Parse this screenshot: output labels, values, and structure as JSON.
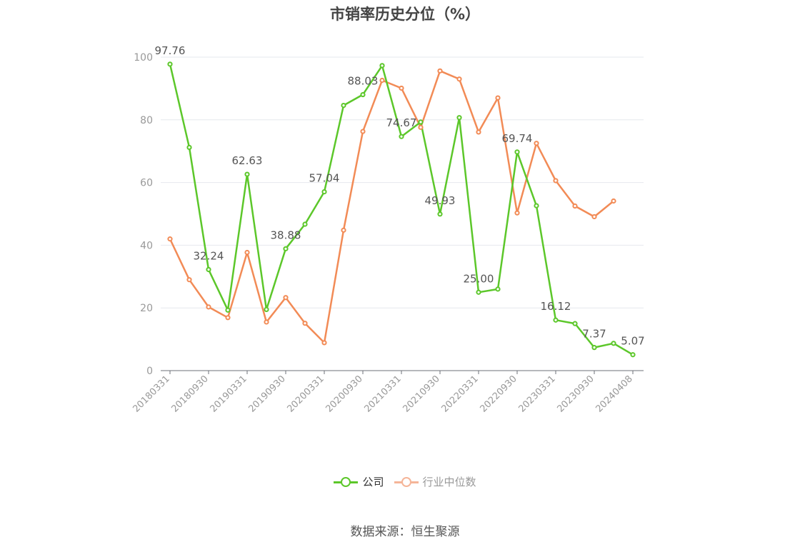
{
  "title": "市销率历史分位（%）",
  "source": "数据来源：恒生聚源",
  "colors": {
    "company": "#5cc72a",
    "industry": "#f28b56",
    "grid": "#e6e8ee",
    "axis": "#999999",
    "label": "#555555"
  },
  "chart_data": {
    "type": "line",
    "title": "市销率历史分位（%）",
    "xlabel": "",
    "ylabel": "",
    "ylim": [
      0,
      100
    ],
    "yticks": [
      0,
      20,
      40,
      60,
      80,
      100
    ],
    "grid": true,
    "legend_position": "bottom",
    "x": [
      "20180331",
      "20180630",
      "20180930",
      "20181231",
      "20190331",
      "20190630",
      "20190930",
      "20191231",
      "20200331",
      "20200630",
      "20200930",
      "20201231",
      "20210331",
      "20210630",
      "20210930",
      "20211231",
      "20220331",
      "20220630",
      "20220930",
      "20221231",
      "20230331",
      "20230630",
      "20230930",
      "20231231",
      "20240408"
    ],
    "xtick_labels": [
      "20180331",
      "20180930",
      "20190331",
      "20190930",
      "20200331",
      "20200930",
      "20210331",
      "20210930",
      "20220331",
      "20220930",
      "20230331",
      "20230930",
      "20240408"
    ],
    "series": [
      {
        "name": "公司",
        "color": "#5cc72a",
        "values": [
          97.76,
          71.2,
          32.24,
          19.3,
          62.63,
          19.5,
          38.88,
          46.7,
          57.04,
          84.6,
          88.03,
          97.3,
          74.67,
          79.3,
          49.93,
          80.7,
          25.0,
          26.0,
          69.74,
          52.6,
          16.12,
          15.0,
          7.37,
          8.7,
          5.07
        ],
        "labels": [
          "97.76",
          "",
          "32.24",
          "",
          "62.63",
          "",
          "38.88",
          "",
          "57.04",
          "",
          "88.03",
          "",
          "74.67",
          "",
          "49.93",
          "",
          "25.00",
          "",
          "69.74",
          "",
          "16.12",
          "",
          "7.37",
          "",
          "5.07"
        ]
      },
      {
        "name": "行业中位数",
        "color": "#f28b56",
        "values": [
          42.0,
          29.0,
          20.3,
          16.9,
          37.7,
          15.5,
          23.3,
          15.1,
          8.9,
          44.8,
          76.3,
          92.6,
          90.1,
          77.6,
          95.6,
          93.0,
          76.1,
          87.0,
          50.3,
          72.5,
          60.6,
          52.5,
          49.1,
          54.1,
          null
        ]
      }
    ]
  }
}
